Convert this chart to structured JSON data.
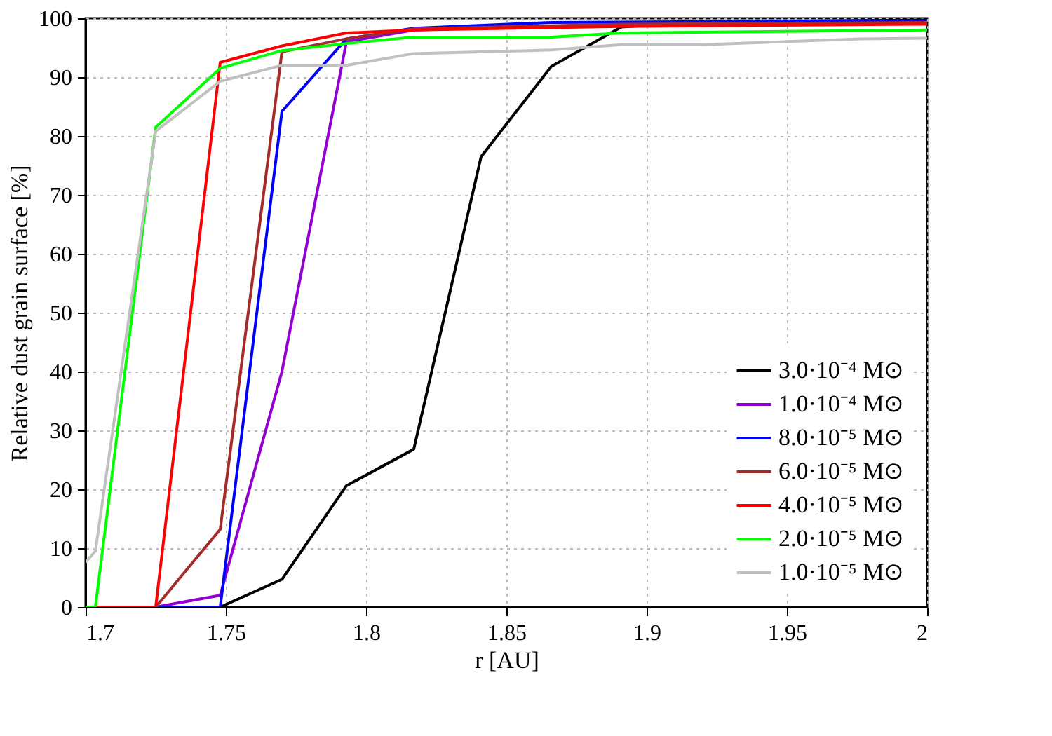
{
  "chart_data": {
    "type": "line",
    "xlabel": "r [AU]",
    "ylabel": "Relative dust grain surface [%]",
    "xlim": [
      1.7,
      2.0
    ],
    "xticks": [
      1.7,
      1.75,
      1.8,
      1.85,
      1.9,
      1.95,
      2
    ],
    "ylim": [
      0,
      100
    ],
    "yticks": [
      0,
      10,
      20,
      30,
      40,
      50,
      60,
      70,
      80,
      90,
      100
    ],
    "grid": true,
    "legend": "bottom right",
    "line_style": "solid",
    "marker": "none",
    "series": [
      {
        "name": "3.0·10⁻⁴ M⊙",
        "color": "#000000",
        "x": [
          1.7,
          1.725,
          1.748,
          1.77,
          1.793,
          1.817,
          1.841,
          1.866,
          1.891,
          1.92,
          2.0
        ],
        "values": [
          0,
          0,
          0,
          4.7,
          20.6,
          26.8,
          76.5,
          91.8,
          98.5,
          99.4,
          99.7
        ]
      },
      {
        "name": "1.0·10⁻⁴ M⊙",
        "color": "#9400d3",
        "x": [
          1.7,
          1.725,
          1.748,
          1.77,
          1.793,
          1.817,
          1.891,
          2.0
        ],
        "values": [
          0,
          0,
          2,
          40,
          96,
          98,
          99,
          99.5
        ]
      },
      {
        "name": "8.0·10⁻⁵ M⊙",
        "color": "#0000ff",
        "x": [
          1.7,
          1.725,
          1.748,
          1.77,
          1.793,
          1.817,
          1.866,
          2.0
        ],
        "values": [
          0,
          0,
          0,
          84.2,
          96.5,
          98.3,
          99.3,
          99.6
        ]
      },
      {
        "name": "6.0·10⁻⁵ M⊙",
        "color": "#a52a2a",
        "x": [
          1.7,
          1.725,
          1.748,
          1.77,
          1.793,
          1.817,
          1.891,
          2.0
        ],
        "values": [
          0,
          0,
          13.2,
          94.3,
          96.5,
          98.2,
          99,
          99.3
        ]
      },
      {
        "name": "4.0·10⁻⁵ M⊙",
        "color": "#ff0000",
        "x": [
          1.7,
          1.725,
          1.748,
          1.77,
          1.793,
          1.817,
          1.891,
          2.0
        ],
        "values": [
          0,
          0,
          92.5,
          95.3,
          97.5,
          98,
          98.6,
          99
        ]
      },
      {
        "name": "2.0·10⁻⁵ M⊙",
        "color": "#00ff00",
        "x": [
          1.7,
          1.7035,
          1.725,
          1.748,
          1.77,
          1.793,
          1.817,
          1.866,
          1.891,
          2.0
        ],
        "values": [
          0,
          0,
          81.5,
          91.5,
          94.5,
          95.7,
          96.8,
          96.8,
          97.5,
          98
        ]
      },
      {
        "name": "1.0·10⁻⁵ M⊙",
        "color": "#c0c0c0",
        "x": [
          1.7,
          1.7035,
          1.725,
          1.748,
          1.77,
          1.793,
          1.817,
          1.841,
          1.866,
          1.891,
          1.92,
          1.976,
          2.0
        ],
        "values": [
          7.6,
          9.5,
          80.8,
          89.3,
          92,
          92,
          94,
          94.3,
          94.6,
          95.5,
          95.5,
          96.5,
          96.6
        ]
      }
    ]
  }
}
